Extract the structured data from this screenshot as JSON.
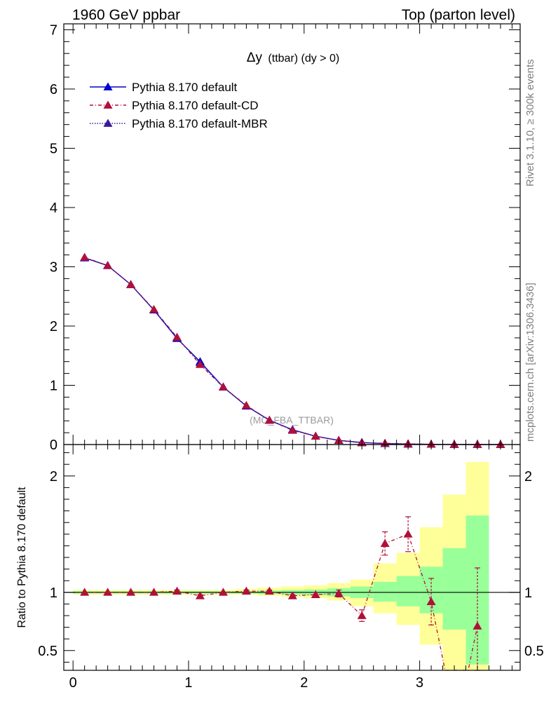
{
  "header": {
    "left": "1960 GeV ppbar",
    "right": "Top (parton level)"
  },
  "side_labels": {
    "rivet": "Rivet 3.1.10, ≥ 300k events",
    "mcplots": "mcplots.cern.ch [arXiv:1306.3436]"
  },
  "chart_data": {
    "type": "line",
    "title_main": "Δy",
    "title_sub": "(ttbar) (dy > 0)",
    "watermark": "(MC_FBA_TTBAR)",
    "x_ticks": [
      "0",
      "1",
      "2",
      "3"
    ],
    "xlim": [
      -0.08,
      3.87
    ],
    "main": {
      "ylim": [
        0,
        7.1
      ],
      "y_ticks": [
        "0",
        "1",
        "2",
        "3",
        "4",
        "5",
        "6",
        "7"
      ],
      "x": [
        0.1,
        0.3,
        0.5,
        0.7,
        0.9,
        1.1,
        1.3,
        1.5,
        1.7,
        1.9,
        2.1,
        2.3,
        2.5,
        2.7,
        2.9,
        3.1,
        3.3,
        3.5,
        3.7
      ],
      "series": [
        {
          "name": "Pythia 8.170 default",
          "color": "#0000cc",
          "values": [
            3.15,
            3.02,
            2.7,
            2.27,
            1.79,
            1.4,
            0.97,
            0.65,
            0.41,
            0.25,
            0.14,
            0.07,
            0.035,
            0.016,
            0.008,
            0.004,
            0.002,
            0.001,
            0.0005
          ]
        },
        {
          "name": "Pythia 8.170 default-CD",
          "color": "#b0103a",
          "values": [
            3.16,
            3.02,
            2.7,
            2.28,
            1.81,
            1.35,
            0.97,
            0.66,
            0.41,
            0.24,
            0.14,
            0.07,
            0.028,
            0.022,
            0.012,
            0.004,
            0.001,
            0.001,
            0.0005
          ]
        },
        {
          "name": "Pythia 8.170 default-MBR",
          "color": "#3a1a9c",
          "values": [
            3.15,
            3.02,
            2.7,
            2.27,
            1.8,
            1.38,
            0.97,
            0.65,
            0.41,
            0.25,
            0.14,
            0.07,
            0.034,
            0.016,
            0.008,
            0.004,
            0.002,
            0.001,
            0.0005
          ]
        }
      ]
    },
    "ratio": {
      "ylabel": "Ratio to Pythia 8.170 default",
      "ylim": [
        0.33,
        2.27
      ],
      "y_ticks": [
        "0.5",
        "1",
        "2"
      ],
      "reference_line": 1,
      "band_edges": [
        0,
        0.2,
        0.4,
        0.6,
        0.8,
        1.0,
        1.2,
        1.4,
        1.6,
        1.8,
        2.0,
        2.2,
        2.4,
        2.6,
        2.8,
        3.0,
        3.2,
        3.4,
        3.6
      ],
      "green_band": {
        "lo": [
          0.99,
          0.99,
          0.99,
          0.99,
          0.99,
          0.99,
          0.99,
          0.99,
          0.985,
          0.98,
          0.975,
          0.965,
          0.95,
          0.92,
          0.88,
          0.82,
          0.68,
          0.38
        ],
        "hi": [
          1.01,
          1.01,
          1.01,
          1.01,
          1.01,
          1.01,
          1.01,
          1.01,
          1.015,
          1.02,
          1.025,
          1.035,
          1.05,
          1.09,
          1.14,
          1.22,
          1.38,
          1.66
        ]
      },
      "yellow_band": {
        "lo": [
          0.98,
          0.98,
          0.98,
          0.98,
          0.98,
          0.98,
          0.98,
          0.98,
          0.97,
          0.96,
          0.95,
          0.93,
          0.88,
          0.82,
          0.72,
          0.55,
          0.33,
          0.33
        ],
        "hi": [
          1.02,
          1.02,
          1.02,
          1.02,
          1.02,
          1.02,
          1.02,
          1.03,
          1.04,
          1.05,
          1.06,
          1.08,
          1.11,
          1.25,
          1.34,
          1.56,
          1.84,
          2.12
        ]
      },
      "cd_ratio": {
        "x": [
          0.1,
          0.3,
          0.5,
          0.7,
          0.9,
          1.1,
          1.3,
          1.5,
          1.7,
          1.9,
          2.1,
          2.3,
          2.5,
          2.7,
          2.9,
          3.1,
          3.5
        ],
        "values": [
          1.0,
          1.0,
          1.0,
          1.0,
          1.01,
          0.97,
          1.0,
          1.01,
          1.01,
          0.97,
          0.98,
          0.99,
          0.8,
          1.42,
          1.5,
          0.92,
          0.71
        ],
        "err": [
          0.0,
          0.0,
          0.0,
          0.0,
          0.01,
          0.01,
          0.0,
          0.01,
          0.01,
          0.01,
          0.02,
          0.03,
          0.05,
          0.1,
          0.15,
          0.2,
          0.5
        ]
      }
    }
  }
}
